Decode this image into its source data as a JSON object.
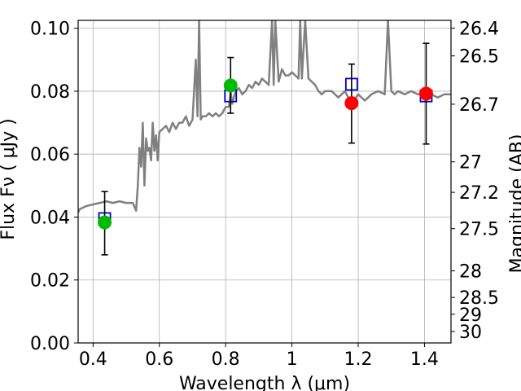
{
  "chart_data": {
    "type": "line",
    "xlabel": "Wavelength  λ (μm)",
    "ylabel": "Flux  Fν  ( μJy )",
    "ylabel_right": "Magnitude (AB)",
    "xlim": [
      0.355,
      1.48
    ],
    "ylim": [
      0.0,
      0.1025
    ],
    "grid": true,
    "x_ticks": [
      {
        "value": 0.4,
        "label": "0.4"
      },
      {
        "value": 0.6,
        "label": "0.6"
      },
      {
        "value": 0.8,
        "label": "0.8"
      },
      {
        "value": 1.0,
        "label": "1"
      },
      {
        "value": 1.2,
        "label": "1.2"
      },
      {
        "value": 1.4,
        "label": "1.4"
      }
    ],
    "y_ticks": [
      {
        "value": 0.0,
        "label": "0.00"
      },
      {
        "value": 0.02,
        "label": "0.02"
      },
      {
        "value": 0.04,
        "label": "0.04"
      },
      {
        "value": 0.06,
        "label": "0.06"
      },
      {
        "value": 0.08,
        "label": "0.08"
      },
      {
        "value": 0.1,
        "label": "0.10"
      }
    ],
    "right_ticks": [
      {
        "mag": 26.4,
        "label": "26.4"
      },
      {
        "mag": 26.5,
        "label": "26.5"
      },
      {
        "mag": 26.7,
        "label": "26.7"
      },
      {
        "mag": 27.0,
        "label": "27"
      },
      {
        "mag": 27.2,
        "label": "27.2"
      },
      {
        "mag": 27.5,
        "label": "27.5"
      },
      {
        "mag": 28.0,
        "label": "28"
      },
      {
        "mag": 28.5,
        "label": "28.5"
      },
      {
        "mag": 29.0,
        "label": "29"
      },
      {
        "mag": 30.0,
        "label": "30"
      }
    ],
    "model_spectrum": {
      "color": "#808080",
      "x": [
        0.355,
        0.36,
        0.38,
        0.4,
        0.42,
        0.44,
        0.46,
        0.48,
        0.5,
        0.52,
        0.53,
        0.535,
        0.54,
        0.545,
        0.55,
        0.555,
        0.56,
        0.565,
        0.57,
        0.575,
        0.58,
        0.585,
        0.59,
        0.595,
        0.6,
        0.61,
        0.62,
        0.63,
        0.64,
        0.65,
        0.66,
        0.67,
        0.68,
        0.69,
        0.7,
        0.71,
        0.715,
        0.72,
        0.725,
        0.73,
        0.74,
        0.75,
        0.76,
        0.77,
        0.78,
        0.79,
        0.8,
        0.81,
        0.815,
        0.82,
        0.83,
        0.84,
        0.85,
        0.86,
        0.87,
        0.88,
        0.89,
        0.9,
        0.91,
        0.92,
        0.93,
        0.94,
        0.945,
        0.95,
        0.96,
        0.97,
        0.98,
        0.99,
        1.0,
        1.01,
        1.02,
        1.025,
        1.03,
        1.04,
        1.05,
        1.06,
        1.07,
        1.08,
        1.09,
        1.1,
        1.12,
        1.14,
        1.16,
        1.18,
        1.2,
        1.22,
        1.24,
        1.26,
        1.28,
        1.29,
        1.3,
        1.31,
        1.32,
        1.34,
        1.36,
        1.38,
        1.4,
        1.42,
        1.44,
        1.46,
        1.48
      ],
      "y": [
        0.0415,
        0.0425,
        0.0435,
        0.044,
        0.0445,
        0.045,
        0.0445,
        0.045,
        0.0445,
        0.0445,
        0.042,
        0.05,
        0.062,
        0.056,
        0.07,
        0.05,
        0.065,
        0.061,
        0.062,
        0.058,
        0.07,
        0.061,
        0.066,
        0.058,
        0.067,
        0.068,
        0.069,
        0.067,
        0.07,
        0.068,
        0.07,
        0.07,
        0.072,
        0.069,
        0.071,
        0.09,
        0.072,
        0.1025,
        0.071,
        0.072,
        0.072,
        0.073,
        0.072,
        0.073,
        0.072,
        0.073,
        0.075,
        0.075,
        0.08,
        0.076,
        0.08,
        0.081,
        0.079,
        0.08,
        0.082,
        0.081,
        0.083,
        0.082,
        0.084,
        0.083,
        0.082,
        0.1025,
        0.082,
        0.1025,
        0.083,
        0.087,
        0.085,
        0.085,
        0.086,
        0.085,
        0.084,
        0.1025,
        0.084,
        0.1025,
        0.084,
        0.083,
        0.082,
        0.08,
        0.079,
        0.08,
        0.08,
        0.078,
        0.08,
        0.076,
        0.079,
        0.077,
        0.079,
        0.08,
        0.079,
        0.1025,
        0.08,
        0.079,
        0.08,
        0.079,
        0.08,
        0.079,
        0.079,
        0.079,
        0.078,
        0.079,
        0.079
      ]
    },
    "model_photometry": {
      "marker": "open square",
      "color": "#0000cc",
      "points": [
        {
          "x": 0.435,
          "y": 0.0395
        },
        {
          "x": 0.815,
          "y": 0.0785
        },
        {
          "x": 1.18,
          "y": 0.0822
        },
        {
          "x": 1.405,
          "y": 0.0785
        }
      ]
    },
    "observed_photometry": {
      "marker": "filled circle",
      "points": [
        {
          "x": 0.435,
          "y": 0.0383,
          "err_low": 0.0103,
          "err_high": 0.0098,
          "color": "#00bb00"
        },
        {
          "x": 0.815,
          "y": 0.0818,
          "err_low": 0.0088,
          "err_high": 0.0089,
          "color": "#00bb00"
        },
        {
          "x": 1.18,
          "y": 0.0762,
          "err_low": 0.0127,
          "err_high": 0.0124,
          "color": "#ff0000"
        },
        {
          "x": 1.405,
          "y": 0.0792,
          "err_low": 0.016,
          "err_high": 0.016,
          "color": "#ff0000"
        }
      ]
    }
  }
}
